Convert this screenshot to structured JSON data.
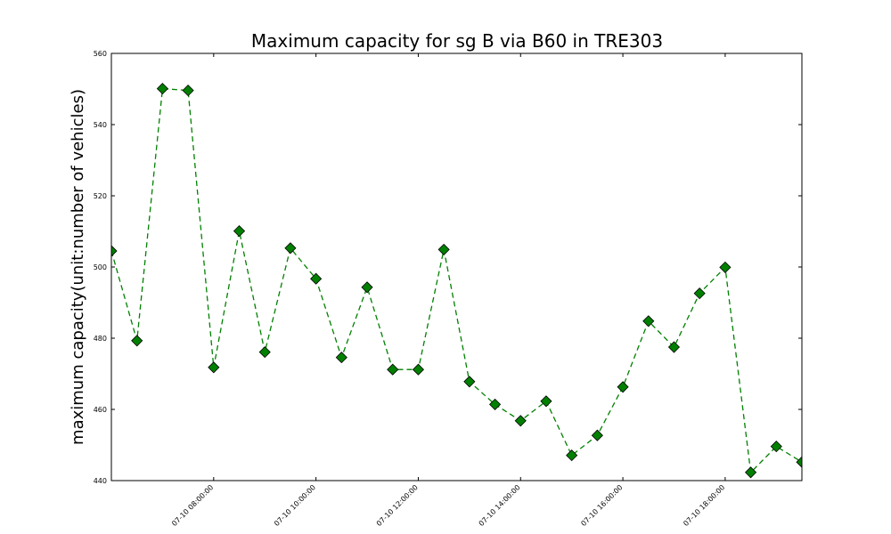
{
  "chart_data": {
    "type": "line",
    "title": "Maximum capacity for sg B via B60 in TRE303",
    "xlabel": "",
    "ylabel": "maximum capacity(unit:number of vehicles)",
    "ylim": [
      440,
      560
    ],
    "xlim": [
      "2015-07-10 06:00:00",
      "2015-07-10 19:30:00"
    ],
    "yticks": [
      440,
      460,
      480,
      500,
      520,
      540,
      560
    ],
    "xticks": [
      {
        "value": "2015-07-10 08:00:00",
        "label": "07-10 08:00:00"
      },
      {
        "value": "2015-07-10 10:00:00",
        "label": "07-10 10:00:00"
      },
      {
        "value": "2015-07-10 12:00:00",
        "label": "07-10 12:00:00"
      },
      {
        "value": "2015-07-10 14:00:00",
        "label": "07-10 14:00:00"
      },
      {
        "value": "2015-07-10 16:00:00",
        "label": "07-10 16:00:00"
      },
      {
        "value": "2015-07-10 18:00:00",
        "label": "07-10 18:00:00"
      }
    ],
    "grid": false,
    "series": [
      {
        "color": "#008000",
        "line_style": "dashed",
        "marker": "diamond",
        "x": [
          "2015-07-10 06:00:00",
          "2015-07-10 06:30:00",
          "2015-07-10 07:00:00",
          "2015-07-10 07:30:00",
          "2015-07-10 08:00:00",
          "2015-07-10 08:30:00",
          "2015-07-10 09:00:00",
          "2015-07-10 09:30:00",
          "2015-07-10 10:00:00",
          "2015-07-10 10:30:00",
          "2015-07-10 11:00:00",
          "2015-07-10 11:30:00",
          "2015-07-10 12:00:00",
          "2015-07-10 12:30:00",
          "2015-07-10 13:00:00",
          "2015-07-10 13:30:00",
          "2015-07-10 14:00:00",
          "2015-07-10 14:30:00",
          "2015-07-10 15:00:00",
          "2015-07-10 15:30:00",
          "2015-07-10 16:00:00",
          "2015-07-10 16:30:00",
          "2015-07-10 17:00:00",
          "2015-07-10 17:30:00",
          "2015-07-10 18:00:00",
          "2015-07-10 18:30:00",
          "2015-07-10 19:00:00",
          "2015-07-10 19:30:00"
        ],
        "y": [
          504.5,
          479.3,
          550.1,
          549.6,
          471.8,
          510.1,
          476.1,
          505.3,
          496.7,
          474.6,
          494.3,
          471.2,
          471.2,
          504.9,
          467.8,
          461.4,
          456.8,
          462.3,
          447.1,
          452.7,
          466.3,
          484.8,
          477.5,
          492.6,
          499.9,
          442.3,
          449.6,
          445.2
        ]
      }
    ]
  }
}
